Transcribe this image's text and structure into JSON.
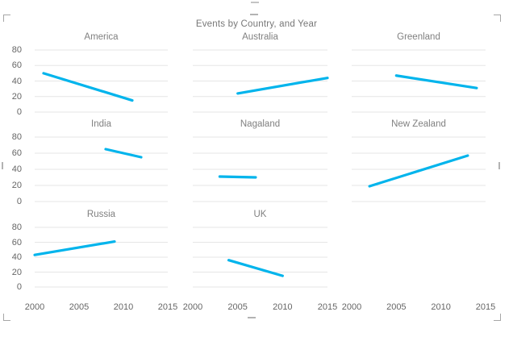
{
  "visual": {
    "title": "Events by Country, and Year",
    "selected": true
  },
  "colors": {
    "line": "#00B4EC",
    "gridline": "#E6E6E6",
    "axis_text": "#666666",
    "panel_title_text": "#808080",
    "chart_title_text": "#777777",
    "handle": "#A6A6A6",
    "background": "#FFFFFF"
  },
  "chart_data": {
    "type": "line",
    "title": "Events by Country, and Year",
    "facet_layout": "small multiples, 3 columns x 3 rows (8 panels)",
    "xlabel": "",
    "ylabel": "",
    "x_range": [
      2000,
      2015
    ],
    "y_range": [
      0,
      80
    ],
    "x_ticks": [
      2000,
      2005,
      2010,
      2015
    ],
    "y_ticks": [
      80,
      60,
      40,
      20,
      0
    ],
    "grid": "horizontal",
    "legend": "none",
    "panels": [
      {
        "name": "America",
        "x": [
          2001,
          2011
        ],
        "y": [
          50,
          15
        ]
      },
      {
        "name": "Australia",
        "x": [
          2005,
          2015
        ],
        "y": [
          24,
          44
        ]
      },
      {
        "name": "Greenland",
        "x": [
          2005,
          2014
        ],
        "y": [
          47,
          31
        ]
      },
      {
        "name": "India",
        "x": [
          2008,
          2012
        ],
        "y": [
          65,
          55
        ]
      },
      {
        "name": "Nagaland",
        "x": [
          2003,
          2007
        ],
        "y": [
          31,
          30
        ]
      },
      {
        "name": "New Zealand",
        "x": [
          2002,
          2013
        ],
        "y": [
          19,
          57
        ]
      },
      {
        "name": "Russia",
        "x": [
          2000,
          2009
        ],
        "y": [
          43,
          61
        ]
      },
      {
        "name": "UK",
        "x": [
          2004,
          2010
        ],
        "y": [
          36,
          15
        ]
      }
    ]
  }
}
